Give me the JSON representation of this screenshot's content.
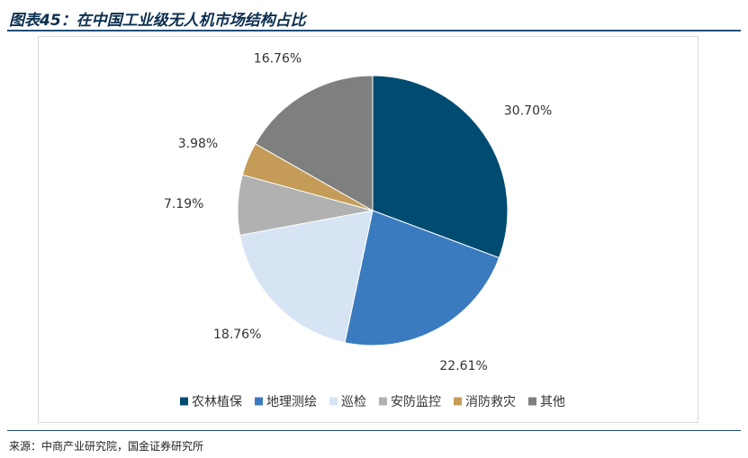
{
  "header": {
    "title": "图表45：在中国工业级无人机市场结构占比"
  },
  "footer": {
    "source": "来源：中商产业研究院，国金证券研究所"
  },
  "chart_data": {
    "type": "pie",
    "start_angle_deg": 0,
    "direction": "clockwise",
    "legend_position": "bottom",
    "slices": [
      {
        "label": "农林植保",
        "value": 30.7,
        "value_label": "30.70%",
        "color": "#004c71"
      },
      {
        "label": "地理测绘",
        "value": 22.61,
        "value_label": "22.61%",
        "color": "#3a7bbf"
      },
      {
        "label": "巡检",
        "value": 18.76,
        "value_label": "18.76%",
        "color": "#d6e4f4"
      },
      {
        "label": "安防监控",
        "value": 7.19,
        "value_label": "7.19%",
        "color": "#b1b1b1"
      },
      {
        "label": "消防救灾",
        "value": 3.98,
        "value_label": "3.98%",
        "color": "#c49c58"
      },
      {
        "label": "其他",
        "value": 16.76,
        "value_label": "16.76%",
        "color": "#7f7f7f"
      }
    ]
  }
}
